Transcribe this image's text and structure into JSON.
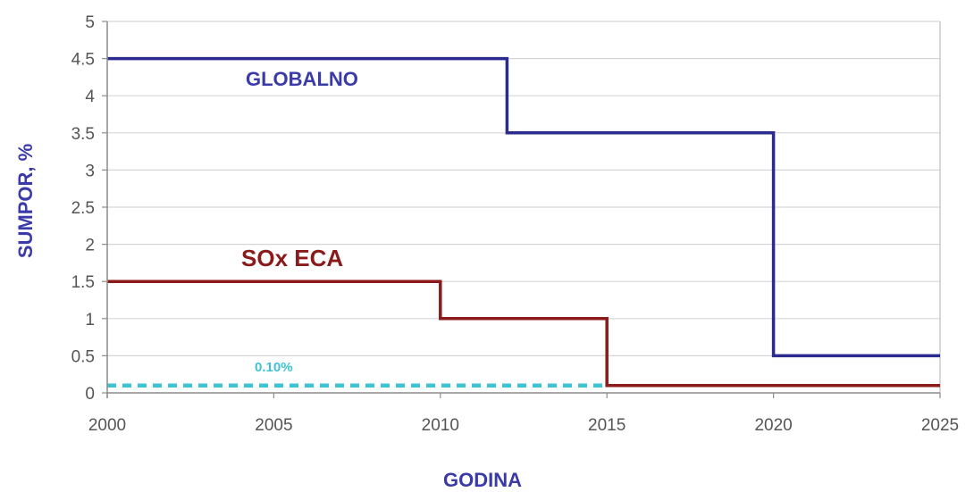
{
  "chart_data": {
    "type": "line",
    "xlabel": "GODINA",
    "ylabel": "SUMPOR, %",
    "xlim": [
      2000,
      2025
    ],
    "ylim": [
      0,
      5
    ],
    "x_ticks": [
      2000,
      2005,
      2010,
      2015,
      2020,
      2025
    ],
    "y_ticks": [
      0,
      0.5,
      1,
      1.5,
      2,
      2.5,
      3,
      3.5,
      4,
      4.5,
      5
    ],
    "y_tick_labels": [
      "0",
      "0.5",
      "1",
      "1.5",
      "2",
      "2.5",
      "3",
      "3.5",
      "4",
      "4.5",
      "5"
    ],
    "grid": true,
    "series": [
      {
        "name": "GLOBALNO",
        "color": "#2b2b8f",
        "style": "step",
        "points": [
          [
            2000,
            4.5
          ],
          [
            2012,
            4.5
          ],
          [
            2012,
            3.5
          ],
          [
            2020,
            3.5
          ],
          [
            2020,
            0.5
          ],
          [
            2025,
            0.5
          ]
        ]
      },
      {
        "name": "SOx ECA",
        "color": "#8b1a1a",
        "style": "step",
        "points": [
          [
            2000,
            1.5
          ],
          [
            2010,
            1.5
          ],
          [
            2010,
            1.0
          ],
          [
            2015,
            1.0
          ],
          [
            2015,
            0.1
          ],
          [
            2025,
            0.1
          ]
        ]
      },
      {
        "name": "0.10%",
        "color": "#3ec3d3",
        "style": "dashed",
        "points": [
          [
            2000,
            0.1
          ],
          [
            2015,
            0.1
          ]
        ]
      }
    ]
  }
}
